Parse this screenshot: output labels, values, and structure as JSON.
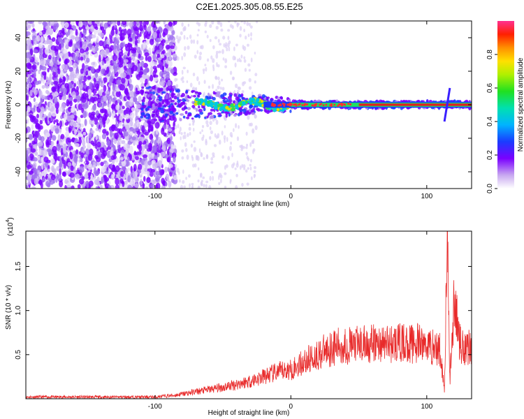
{
  "title": "C2E1.2025.305.08.55.E25",
  "chart_data": [
    {
      "type": "heatmap",
      "xlabel": "Height of straight line (km)",
      "ylabel": "Frequency (Hz)",
      "xlim": [
        -195,
        133
      ],
      "ylim": [
        -50,
        50
      ],
      "xticks": [
        -100,
        0,
        100
      ],
      "yticks": [
        -40,
        -20,
        0,
        20,
        40
      ],
      "colorbar": {
        "label": "Normalized spectral amplitude",
        "range": [
          0,
          1
        ],
        "ticks": [
          0.0,
          0.2,
          0.4,
          0.6,
          0.8
        ]
      },
      "features": {
        "scattered_noise_range_km": [
          -195,
          -85
        ],
        "central_trace_frequency_hz": 0,
        "strong_ridge_range_km": [
          0,
          133
        ],
        "peak_spike_km": 115
      }
    },
    {
      "type": "line",
      "xlabel": "Height of straight line (km)",
      "ylabel": "SNR (10 * v/v)",
      "y_multiplier": "(x10",
      "y_exponent": "4",
      "xlim": [
        -195,
        133
      ],
      "ylim": [
        0,
        1.9
      ],
      "xticks": [
        -100,
        0,
        100
      ],
      "yticks": [
        0.5,
        1.0,
        1.5
      ],
      "series": [
        {
          "color": "#e82a2a",
          "x": [
            -195,
            -150,
            -100,
            -85,
            -70,
            -50,
            -30,
            -10,
            0,
            10,
            20,
            30,
            40,
            60,
            80,
            100,
            110,
            113,
            115,
            117,
            120,
            125,
            133
          ],
          "y": [
            0.02,
            0.02,
            0.02,
            0.04,
            0.08,
            0.13,
            0.2,
            0.3,
            0.33,
            0.42,
            0.5,
            0.58,
            0.6,
            0.62,
            0.63,
            0.62,
            0.55,
            0.1,
            1.9,
            0.2,
            1.1,
            0.6,
            0.6
          ]
        }
      ]
    }
  ]
}
